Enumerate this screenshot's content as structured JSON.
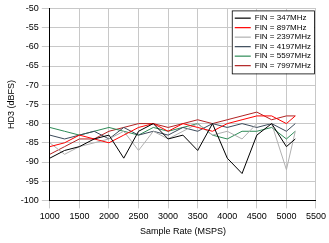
{
  "chart_data": {
    "type": "line",
    "x_label": "Sample Rate (MSPS)",
    "y_label": "HD3 (dBFS)",
    "x": [
      1000,
      1250,
      1500,
      1750,
      2000,
      2250,
      2500,
      2750,
      3000,
      3250,
      3500,
      3750,
      4000,
      4250,
      4500,
      4750,
      5000,
      5150
    ],
    "series": [
      {
        "name": "FIN = 347MHz",
        "color": "#000000",
        "values": [
          -89,
          -87,
          -86,
          -84,
          -83,
          -89,
          -82,
          -80,
          -84,
          -83,
          -87,
          -80,
          -89,
          -93,
          -83,
          -80,
          -86,
          -84
        ]
      },
      {
        "name": "FIN = 897MHz",
        "color": "#ff0000",
        "values": [
          -86,
          -85,
          -83,
          -84,
          -85,
          -83,
          -81,
          -80,
          -82,
          -80,
          -81,
          -82,
          -80,
          -79,
          -78,
          -78,
          -80,
          -78
        ]
      },
      {
        "name": "FIN = 2397MHz",
        "color": "#b0b0b0",
        "values": [
          -85,
          -88,
          -86,
          -85,
          -84,
          -82,
          -87,
          -82,
          -84,
          -82,
          -80,
          -83,
          -82,
          -84,
          -80,
          -80,
          -92,
          -82
        ]
      },
      {
        "name": "FIN = 4197MHz",
        "color": "#3c4a5a",
        "values": [
          -83,
          -84,
          -83,
          -82,
          -84,
          -81,
          -83,
          -82,
          -83,
          -81,
          -82,
          -80,
          -81,
          -80,
          -81,
          -80,
          -82,
          -80
        ]
      },
      {
        "name": "FIN = 5597MHz",
        "color": "#2e8b57",
        "values": [
          -81,
          -82,
          -83,
          -82,
          -81,
          -82,
          -83,
          -81,
          -82,
          -81,
          -80,
          -83,
          -84,
          -82,
          -82,
          -81,
          -84,
          -82
        ]
      },
      {
        "name": "FIN = 7997MHz",
        "color": "#b22222",
        "values": [
          -88,
          -86,
          -84,
          -84,
          -82,
          -81,
          -80,
          -80,
          -81,
          -80,
          -79,
          -80,
          -79,
          -78,
          -77,
          -79,
          -78,
          -78
        ]
      }
    ],
    "xlim": [
      1000,
      5500
    ],
    "xticks": [
      1000,
      1500,
      2000,
      2500,
      3000,
      3500,
      4000,
      4500,
      5000,
      5500
    ],
    "ylim": [
      -100,
      -50
    ],
    "yticks": [
      -100,
      -95,
      -90,
      -85,
      -80,
      -75,
      -70,
      -65,
      -60,
      -55,
      -50
    ],
    "grid": true,
    "legend": "top-right"
  }
}
